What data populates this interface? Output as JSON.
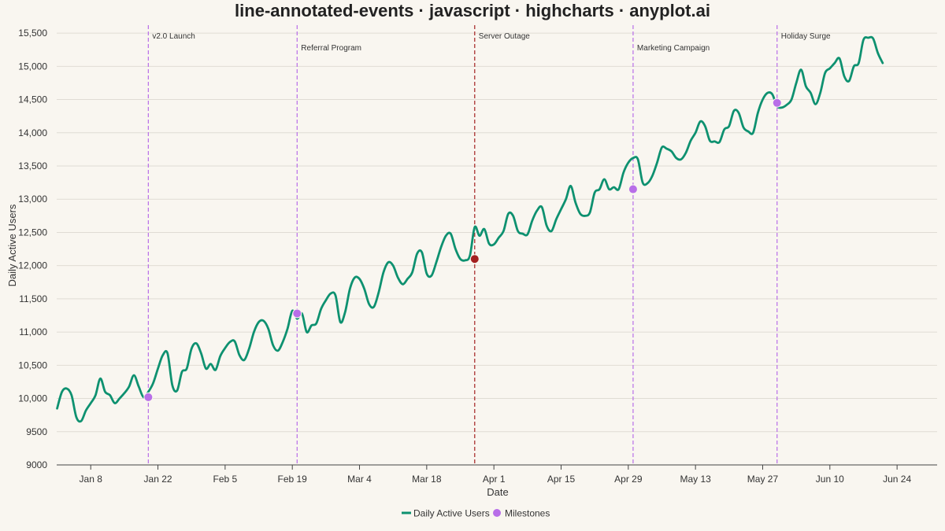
{
  "chart_data": {
    "type": "line",
    "title": "line-annotated-events · javascript · highcharts · anyplot.ai",
    "xlabel": "Date",
    "ylabel": "Daily Active Users",
    "x_range": [
      "2024-01-01",
      "2024-06-30"
    ],
    "ylim": [
      9000,
      15750
    ],
    "y_ticks": [
      9000,
      9500,
      10000,
      10500,
      11000,
      11500,
      12000,
      12500,
      13000,
      13500,
      14000,
      14500,
      15000,
      15500
    ],
    "x_ticks": [
      {
        "date": "2024-01-08",
        "label": "Jan 8"
      },
      {
        "date": "2024-01-22",
        "label": "Jan 22"
      },
      {
        "date": "2024-02-05",
        "label": "Feb 5"
      },
      {
        "date": "2024-02-19",
        "label": "Feb 19"
      },
      {
        "date": "2024-03-04",
        "label": "Mar 4"
      },
      {
        "date": "2024-03-18",
        "label": "Mar 18"
      },
      {
        "date": "2024-04-01",
        "label": "Apr 1"
      },
      {
        "date": "2024-04-15",
        "label": "Apr 15"
      },
      {
        "date": "2024-04-29",
        "label": "Apr 29"
      },
      {
        "date": "2024-05-13",
        "label": "May 13"
      },
      {
        "date": "2024-05-27",
        "label": "May 27"
      },
      {
        "date": "2024-06-10",
        "label": "Jun 10"
      },
      {
        "date": "2024-06-24",
        "label": "Jun 24"
      }
    ],
    "grid": "horizontal",
    "legend_position": "bottom-center",
    "series": [
      {
        "name": "Daily Active Users",
        "color": "#0e9170",
        "points": [
          [
            "2024-01-01",
            9850
          ],
          [
            "2024-01-02",
            10100
          ],
          [
            "2024-01-03",
            10150
          ],
          [
            "2024-01-04",
            10050
          ],
          [
            "2024-01-05",
            9720
          ],
          [
            "2024-01-06",
            9660
          ],
          [
            "2024-01-07",
            9820
          ],
          [
            "2024-01-08",
            9930
          ],
          [
            "2024-01-09",
            10050
          ],
          [
            "2024-01-10",
            10300
          ],
          [
            "2024-01-11",
            10100
          ],
          [
            "2024-01-12",
            10050
          ],
          [
            "2024-01-13",
            9930
          ],
          [
            "2024-01-14",
            10000
          ],
          [
            "2024-01-15",
            10080
          ],
          [
            "2024-01-16",
            10180
          ],
          [
            "2024-01-17",
            10350
          ],
          [
            "2024-01-18",
            10180
          ],
          [
            "2024-01-19",
            10020
          ],
          [
            "2024-01-20",
            10100
          ],
          [
            "2024-01-21",
            10230
          ],
          [
            "2024-01-22",
            10450
          ],
          [
            "2024-01-23",
            10650
          ],
          [
            "2024-01-24",
            10680
          ],
          [
            "2024-01-25",
            10200
          ],
          [
            "2024-01-26",
            10120
          ],
          [
            "2024-01-27",
            10400
          ],
          [
            "2024-01-28",
            10450
          ],
          [
            "2024-01-29",
            10750
          ],
          [
            "2024-01-30",
            10830
          ],
          [
            "2024-01-31",
            10680
          ],
          [
            "2024-02-01",
            10450
          ],
          [
            "2024-02-02",
            10520
          ],
          [
            "2024-02-03",
            10430
          ],
          [
            "2024-02-04",
            10640
          ],
          [
            "2024-02-05",
            10760
          ],
          [
            "2024-02-06",
            10850
          ],
          [
            "2024-02-07",
            10860
          ],
          [
            "2024-02-08",
            10650
          ],
          [
            "2024-02-09",
            10580
          ],
          [
            "2024-02-10",
            10750
          ],
          [
            "2024-02-11",
            11000
          ],
          [
            "2024-02-12",
            11150
          ],
          [
            "2024-02-13",
            11170
          ],
          [
            "2024-02-14",
            11050
          ],
          [
            "2024-02-15",
            10800
          ],
          [
            "2024-02-16",
            10720
          ],
          [
            "2024-02-17",
            10850
          ],
          [
            "2024-02-18",
            11050
          ],
          [
            "2024-02-19",
            11320
          ],
          [
            "2024-02-20",
            11200
          ],
          [
            "2024-02-21",
            11280
          ],
          [
            "2024-02-22",
            11000
          ],
          [
            "2024-02-23",
            11100
          ],
          [
            "2024-02-24",
            11130
          ],
          [
            "2024-02-25",
            11350
          ],
          [
            "2024-02-26",
            11480
          ],
          [
            "2024-02-27",
            11580
          ],
          [
            "2024-02-28",
            11550
          ],
          [
            "2024-02-29",
            11150
          ],
          [
            "2024-03-01",
            11300
          ],
          [
            "2024-03-02",
            11650
          ],
          [
            "2024-03-03",
            11820
          ],
          [
            "2024-03-04",
            11800
          ],
          [
            "2024-03-05",
            11650
          ],
          [
            "2024-03-06",
            11420
          ],
          [
            "2024-03-07",
            11380
          ],
          [
            "2024-03-08",
            11600
          ],
          [
            "2024-03-09",
            11900
          ],
          [
            "2024-03-10",
            12050
          ],
          [
            "2024-03-11",
            12000
          ],
          [
            "2024-03-12",
            11820
          ],
          [
            "2024-03-13",
            11720
          ],
          [
            "2024-03-14",
            11800
          ],
          [
            "2024-03-15",
            11900
          ],
          [
            "2024-03-16",
            12180
          ],
          [
            "2024-03-17",
            12200
          ],
          [
            "2024-03-18",
            11880
          ],
          [
            "2024-03-19",
            11850
          ],
          [
            "2024-03-20",
            12050
          ],
          [
            "2024-03-21",
            12280
          ],
          [
            "2024-03-22",
            12450
          ],
          [
            "2024-03-23",
            12480
          ],
          [
            "2024-03-24",
            12250
          ],
          [
            "2024-03-25",
            12100
          ],
          [
            "2024-03-26",
            12080
          ],
          [
            "2024-03-27",
            12150
          ],
          [
            "2024-03-28",
            12580
          ],
          [
            "2024-03-29",
            12450
          ],
          [
            "2024-03-30",
            12550
          ],
          [
            "2024-03-31",
            12330
          ],
          [
            "2024-04-01",
            12320
          ],
          [
            "2024-04-02",
            12420
          ],
          [
            "2024-04-03",
            12520
          ],
          [
            "2024-04-04",
            12780
          ],
          [
            "2024-04-05",
            12750
          ],
          [
            "2024-04-06",
            12520
          ],
          [
            "2024-04-07",
            12480
          ],
          [
            "2024-04-08",
            12470
          ],
          [
            "2024-04-09",
            12680
          ],
          [
            "2024-04-10",
            12830
          ],
          [
            "2024-04-11",
            12880
          ],
          [
            "2024-04-12",
            12600
          ],
          [
            "2024-04-13",
            12520
          ],
          [
            "2024-04-14",
            12700
          ],
          [
            "2024-04-15",
            12850
          ],
          [
            "2024-04-16",
            13000
          ],
          [
            "2024-04-17",
            13200
          ],
          [
            "2024-04-18",
            12950
          ],
          [
            "2024-04-19",
            12780
          ],
          [
            "2024-04-20",
            12750
          ],
          [
            "2024-04-21",
            12800
          ],
          [
            "2024-04-22",
            13100
          ],
          [
            "2024-04-23",
            13150
          ],
          [
            "2024-04-24",
            13300
          ],
          [
            "2024-04-25",
            13150
          ],
          [
            "2024-04-26",
            13180
          ],
          [
            "2024-04-27",
            13150
          ],
          [
            "2024-04-28",
            13400
          ],
          [
            "2024-04-29",
            13550
          ],
          [
            "2024-04-30",
            13620
          ],
          [
            "2024-05-01",
            13600
          ],
          [
            "2024-05-02",
            13250
          ],
          [
            "2024-05-03",
            13240
          ],
          [
            "2024-05-04",
            13350
          ],
          [
            "2024-05-05",
            13550
          ],
          [
            "2024-05-06",
            13780
          ],
          [
            "2024-05-07",
            13760
          ],
          [
            "2024-05-08",
            13720
          ],
          [
            "2024-05-09",
            13620
          ],
          [
            "2024-05-10",
            13600
          ],
          [
            "2024-05-11",
            13700
          ],
          [
            "2024-05-12",
            13880
          ],
          [
            "2024-05-13",
            14000
          ],
          [
            "2024-05-14",
            14170
          ],
          [
            "2024-05-15",
            14100
          ],
          [
            "2024-05-16",
            13880
          ],
          [
            "2024-05-17",
            13870
          ],
          [
            "2024-05-18",
            13860
          ],
          [
            "2024-05-19",
            14050
          ],
          [
            "2024-05-20",
            14100
          ],
          [
            "2024-05-21",
            14330
          ],
          [
            "2024-05-22",
            14300
          ],
          [
            "2024-05-23",
            14080
          ],
          [
            "2024-05-24",
            14020
          ],
          [
            "2024-05-25",
            14000
          ],
          [
            "2024-05-26",
            14300
          ],
          [
            "2024-05-27",
            14500
          ],
          [
            "2024-05-28",
            14600
          ],
          [
            "2024-05-29",
            14580
          ],
          [
            "2024-05-30",
            14400
          ],
          [
            "2024-05-31",
            14380
          ],
          [
            "2024-06-01",
            14420
          ],
          [
            "2024-06-02",
            14500
          ],
          [
            "2024-06-03",
            14750
          ],
          [
            "2024-06-04",
            14950
          ],
          [
            "2024-06-05",
            14700
          ],
          [
            "2024-06-06",
            14600
          ],
          [
            "2024-06-07",
            14430
          ],
          [
            "2024-06-08",
            14600
          ],
          [
            "2024-06-09",
            14900
          ],
          [
            "2024-06-10",
            14970
          ],
          [
            "2024-06-11",
            15050
          ],
          [
            "2024-06-12",
            15120
          ],
          [
            "2024-06-13",
            14850
          ],
          [
            "2024-06-14",
            14780
          ],
          [
            "2024-06-15",
            15000
          ],
          [
            "2024-06-16",
            15050
          ],
          [
            "2024-06-17",
            15400
          ],
          [
            "2024-06-18",
            15430
          ],
          [
            "2024-06-19",
            15420
          ],
          [
            "2024-06-20",
            15200
          ],
          [
            "2024-06-21",
            15050
          ]
        ]
      },
      {
        "name": "Milestones",
        "color": "#b86ee8",
        "points": [
          [
            "2024-01-20",
            10020,
            "milestone"
          ],
          [
            "2024-02-20",
            11280,
            "milestone"
          ],
          [
            "2024-03-28",
            12100,
            "outage"
          ],
          [
            "2024-04-30",
            13150,
            "milestone"
          ],
          [
            "2024-05-30",
            14450,
            "milestone"
          ]
        ]
      }
    ],
    "events": [
      {
        "date": "2024-01-20",
        "label": "v2.0 Launch",
        "color": "#b86ee8",
        "label_row": 0
      },
      {
        "date": "2024-02-20",
        "label": "Referral Program",
        "color": "#b86ee8",
        "label_row": 1
      },
      {
        "date": "2024-03-28",
        "label": "Server Outage",
        "color": "#a32020",
        "label_row": 0
      },
      {
        "date": "2024-04-30",
        "label": "Marketing Campaign",
        "color": "#b86ee8",
        "label_row": 1
      },
      {
        "date": "2024-05-30",
        "label": "Holiday Surge",
        "color": "#b86ee8",
        "label_row": 0
      }
    ],
    "outage_marker_color": "#a32020"
  }
}
